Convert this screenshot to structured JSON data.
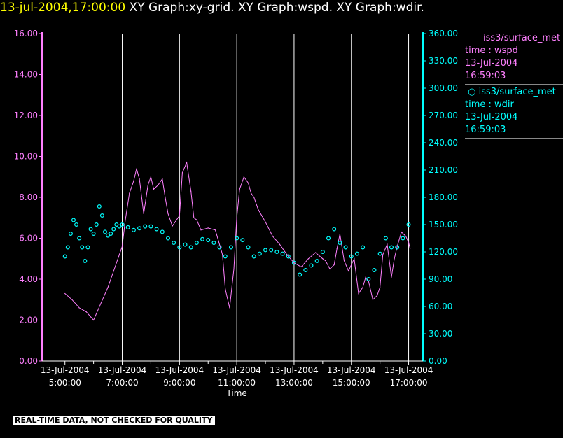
{
  "header": {
    "timestamp": "13-jul-2004,17:00:00",
    "titles": "XY Graph:xy-grid.  XY Graph:wspd.  XY Graph:wdir."
  },
  "legend": {
    "series1": {
      "line1": "iss3/surface_met",
      "line2": "time : wspd",
      "line3": "13-Jul-2004",
      "line4": "16:59:03"
    },
    "series2": {
      "line1": "iss3/surface_met",
      "line2": "time : wdir",
      "line3": "13-Jul-2004",
      "line4": "16:59:03"
    }
  },
  "banner": "REAL-TIME DATA, NOT CHECKED FOR QUALITY",
  "colors": {
    "wspd": "#ff80ff",
    "wdir": "#00ffff",
    "grid": "#ffffff",
    "header_time": "#ffff00"
  },
  "chart_data": {
    "type": "line",
    "xlabel": "Time",
    "x_range_hours": [
      4.2,
      17.5
    ],
    "x_ticks": [
      {
        "h": 5,
        "line1": "13-Jul-2004",
        "line2": "5:00:00"
      },
      {
        "h": 7,
        "line1": "13-Jul-2004",
        "line2": "7:00:00"
      },
      {
        "h": 9,
        "line1": "13-Jul-2004",
        "line2": "9:00:00"
      },
      {
        "h": 11,
        "line1": "13-Jul-2004",
        "line2": "11:00:00"
      },
      {
        "h": 13,
        "line1": "13-Jul-2004",
        "line2": "13:00:00"
      },
      {
        "h": 15,
        "line1": "13-Jul-2004",
        "line2": "15:00:00"
      },
      {
        "h": 17,
        "line1": "13-Jul-2004",
        "line2": "17:00:00"
      }
    ],
    "y_left": {
      "min": 0,
      "max": 16,
      "ticks": [
        "0.00",
        "2.00",
        "4.00",
        "6.00",
        "8.00",
        "10.00",
        "12.00",
        "14.00",
        "16.00"
      ]
    },
    "y_right": {
      "min": 0,
      "max": 360,
      "ticks": [
        "0.00",
        "30.00",
        "60.00",
        "90.00",
        "120.00",
        "150.00",
        "180.00",
        "210.00",
        "240.00",
        "270.00",
        "300.00",
        "330.00",
        "360.00"
      ]
    },
    "grid": "vertical lines at each x tick",
    "series": [
      {
        "name": "iss3/surface_met time : wspd",
        "axis": "left",
        "style": "line",
        "x": [
          5.0,
          5.25,
          5.5,
          5.75,
          6.0,
          6.25,
          6.5,
          6.75,
          6.9,
          7.0,
          7.1,
          7.25,
          7.4,
          7.5,
          7.6,
          7.75,
          7.9,
          8.0,
          8.1,
          8.25,
          8.4,
          8.5,
          8.6,
          8.75,
          9.0,
          9.1,
          9.25,
          9.4,
          9.5,
          9.6,
          9.75,
          10.0,
          10.25,
          10.5,
          10.6,
          10.75,
          10.9,
          11.0,
          11.1,
          11.25,
          11.4,
          11.5,
          11.6,
          11.75,
          12.0,
          12.25,
          12.5,
          12.75,
          13.0,
          13.25,
          13.5,
          13.75,
          14.0,
          14.1,
          14.25,
          14.4,
          14.5,
          14.6,
          14.75,
          14.9,
          15.0,
          15.1,
          15.25,
          15.4,
          15.5,
          15.6,
          15.75,
          15.9,
          16.0,
          16.1,
          16.25,
          16.4,
          16.5,
          16.6,
          16.75,
          16.9,
          17.0,
          17.05
        ],
        "y": [
          3.3,
          3.0,
          2.6,
          2.4,
          2.0,
          2.8,
          3.6,
          4.6,
          5.2,
          5.6,
          6.8,
          8.2,
          8.8,
          9.4,
          8.9,
          7.2,
          8.6,
          9.0,
          8.4,
          8.6,
          8.9,
          8.0,
          7.2,
          6.6,
          7.1,
          9.2,
          9.7,
          8.3,
          7.0,
          6.9,
          6.4,
          6.5,
          6.4,
          5.2,
          3.5,
          2.6,
          4.5,
          7.0,
          8.4,
          9.0,
          8.7,
          8.2,
          8.0,
          7.4,
          6.8,
          6.1,
          5.7,
          5.2,
          4.8,
          4.6,
          5.0,
          5.3,
          5.0,
          4.9,
          4.5,
          4.7,
          5.5,
          6.2,
          4.9,
          4.4,
          4.7,
          5.0,
          3.3,
          3.6,
          4.1,
          3.9,
          3.0,
          3.2,
          3.6,
          5.2,
          5.7,
          4.1,
          5.0,
          5.6,
          6.3,
          6.1,
          5.8,
          5.5
        ]
      },
      {
        "name": "iss3/surface_met time : wdir",
        "axis": "right",
        "style": "circles",
        "x": [
          5.0,
          5.1,
          5.2,
          5.3,
          5.4,
          5.5,
          5.6,
          5.7,
          5.8,
          5.9,
          6.0,
          6.1,
          6.2,
          6.3,
          6.4,
          6.5,
          6.6,
          6.7,
          6.8,
          6.9,
          7.0,
          7.2,
          7.4,
          7.6,
          7.8,
          8.0,
          8.2,
          8.4,
          8.6,
          8.8,
          9.0,
          9.2,
          9.4,
          9.6,
          9.8,
          10.0,
          10.2,
          10.4,
          10.6,
          10.8,
          11.0,
          11.2,
          11.4,
          11.6,
          11.8,
          12.0,
          12.2,
          12.4,
          12.6,
          12.8,
          13.0,
          13.2,
          13.4,
          13.6,
          13.8,
          14.0,
          14.2,
          14.4,
          14.6,
          14.8,
          15.0,
          15.2,
          15.4,
          15.6,
          15.8,
          16.0,
          16.2,
          16.4,
          16.6,
          16.8,
          17.0
        ],
        "y": [
          115,
          125,
          140,
          155,
          150,
          135,
          125,
          110,
          125,
          145,
          140,
          150,
          170,
          160,
          142,
          138,
          140,
          145,
          150,
          148,
          150,
          147,
          144,
          146,
          148,
          148,
          145,
          142,
          135,
          130,
          125,
          128,
          125,
          130,
          134,
          133,
          130,
          125,
          115,
          125,
          135,
          133,
          125,
          115,
          118,
          122,
          122,
          120,
          118,
          115,
          108,
          95,
          100,
          105,
          110,
          120,
          135,
          145,
          130,
          125,
          115,
          118,
          125,
          90,
          100,
          118,
          135,
          125,
          125,
          135,
          150
        ]
      }
    ]
  }
}
